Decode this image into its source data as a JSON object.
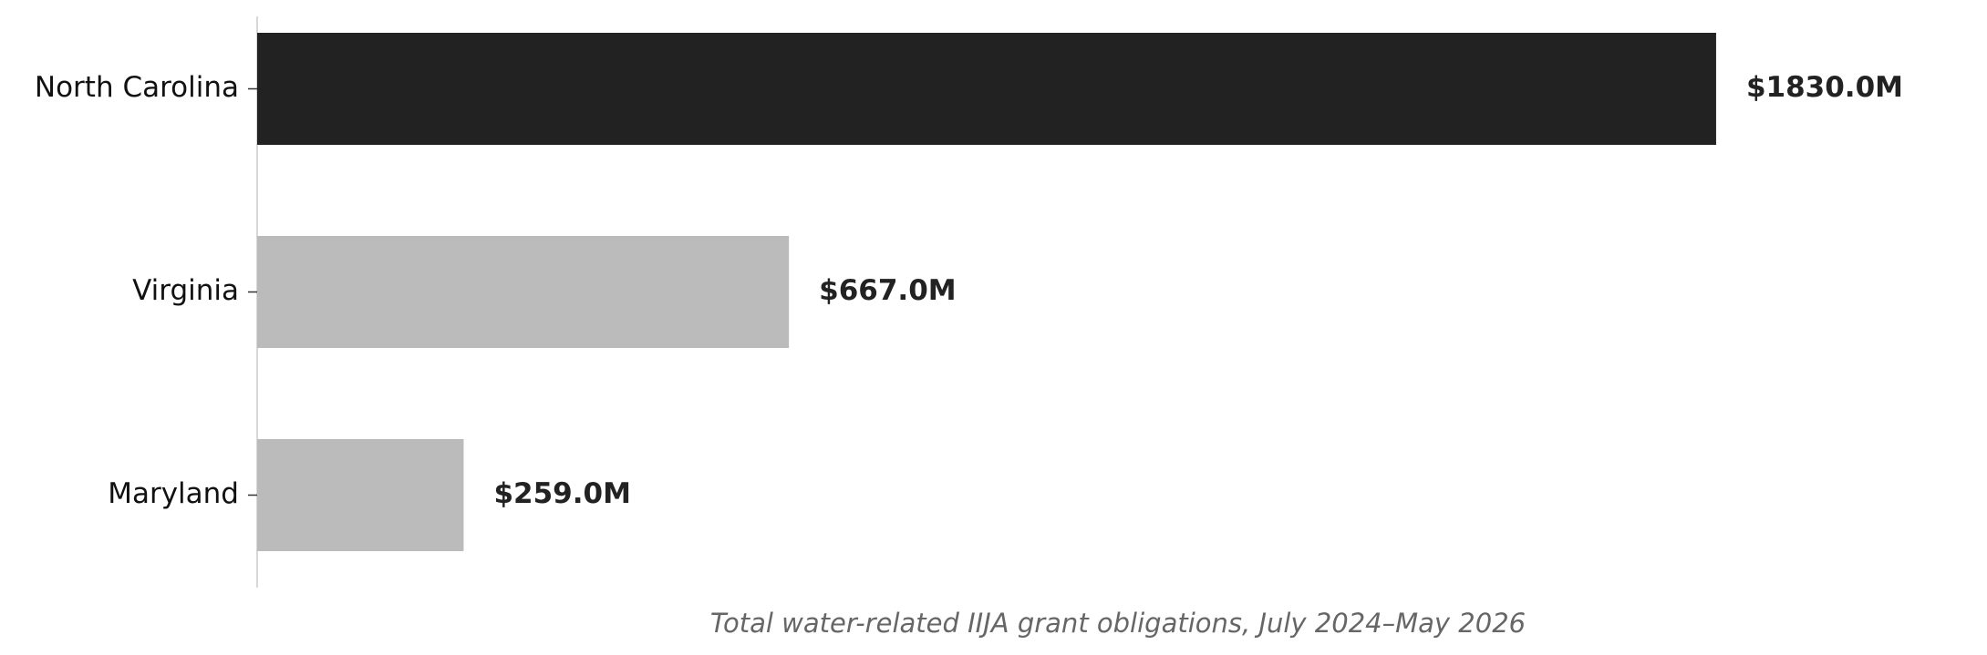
{
  "chart_data": {
    "type": "barh",
    "categories": [
      "North Carolina",
      "Virginia",
      "Maryland"
    ],
    "values": [
      1830,
      667,
      259
    ],
    "value_labels": [
      "$1830.0M",
      "$667.0M",
      "$259.0M"
    ],
    "colors": [
      "#222222",
      "#bbbbbb",
      "#bbbbbb"
    ],
    "x_label": "Total water-related IIJA grant obligations, July 2024–May 2026",
    "xlim": [
      0,
      2100
    ]
  }
}
